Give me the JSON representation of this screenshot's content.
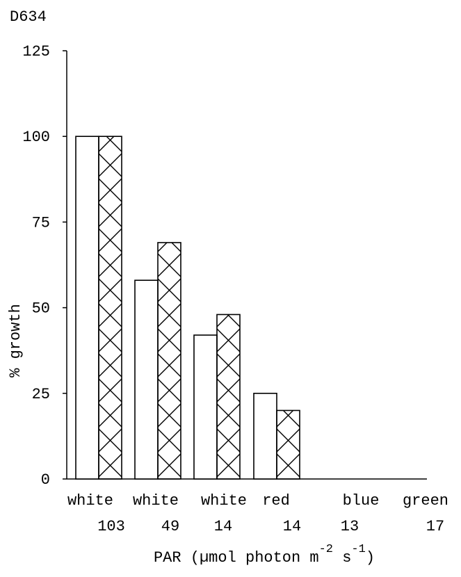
{
  "chart_data": {
    "type": "bar",
    "corner_label": "D634",
    "categories": [
      "white",
      "white",
      "white",
      "red",
      "blue",
      "green"
    ],
    "category_values": [
      "103",
      "49",
      "14",
      "14",
      "13",
      "17"
    ],
    "xlabel_prefix": "PAR (µmol photon m",
    "xlabel_exp1": "-2",
    "xlabel_mid": " s",
    "xlabel_exp2": "-1",
    "xlabel_suffix": ")",
    "ylabel": "% growth",
    "ylim": [
      0,
      125
    ],
    "yticks": [
      0,
      25,
      50,
      75,
      100,
      125
    ],
    "series": [
      {
        "style": "open",
        "values": [
          100,
          58,
          42,
          25,
          0,
          0
        ]
      },
      {
        "style": "cross-hatched",
        "values": [
          100,
          69,
          48,
          20,
          0,
          0
        ]
      }
    ],
    "colors": {
      "ink": "#000000",
      "fill": "#ffffff"
    }
  }
}
